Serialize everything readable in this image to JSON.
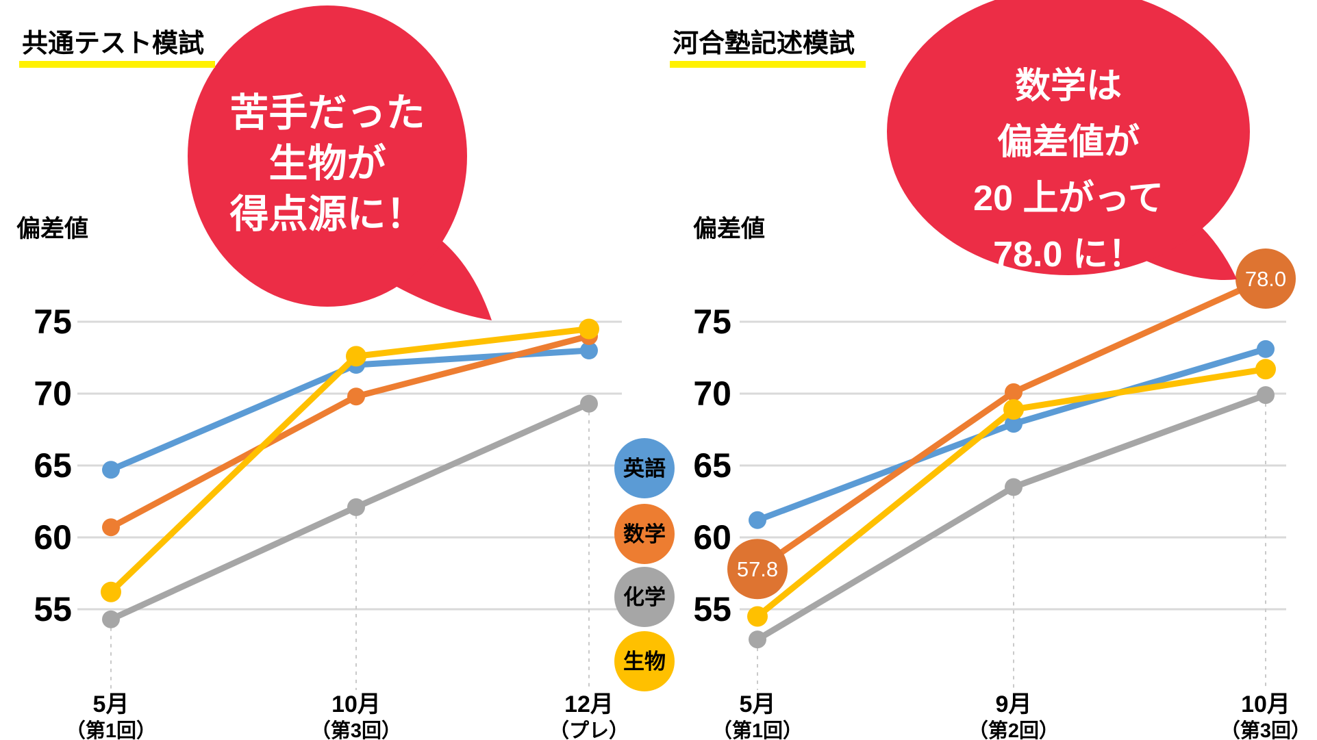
{
  "colors": {
    "english": "#5B9BD5",
    "math": "#ED7D31",
    "chemistry": "#A6A6A6",
    "biology": "#FFC000",
    "annotation_circle": "#DE7431",
    "bubble_red": "#EC2D46",
    "bubble_text": "#FFFFFF",
    "highlight_yellow": "#FFF100",
    "gridline": "#D9D9D9",
    "dash_line": "#C9C9C9",
    "text": "#000000"
  },
  "legend": {
    "items": [
      {
        "label": "英語",
        "series": "english"
      },
      {
        "label": "数学",
        "series": "math"
      },
      {
        "label": "化学",
        "series": "chemistry"
      },
      {
        "label": "生物",
        "series": "biology"
      }
    ]
  },
  "chart_data": [
    {
      "id": "kyotsu-test-moshi",
      "type": "line",
      "title": "共通テスト模試",
      "ylabel": "偏差値",
      "yticks": [
        75,
        70,
        65,
        60,
        55
      ],
      "ylim": [
        52,
        79
      ],
      "grid": true,
      "legend_position": "right-of-chart (shared badges)",
      "categories": [
        {
          "month": "5月",
          "round": "（第1回）"
        },
        {
          "month": "10月",
          "round": "（第3回）"
        },
        {
          "month": "12月",
          "round": "（プレ）"
        }
      ],
      "series": [
        {
          "name": "英語",
          "key": "english",
          "values": [
            64.7,
            72.0,
            73.0
          ]
        },
        {
          "name": "数学",
          "key": "math",
          "values": [
            60.7,
            69.8,
            74.0
          ]
        },
        {
          "name": "化学",
          "key": "chemistry",
          "values": [
            54.3,
            62.1,
            69.3
          ]
        },
        {
          "name": "生物",
          "key": "biology",
          "values": [
            56.2,
            72.6,
            74.5
          ]
        }
      ],
      "callout": {
        "lines": [
          "苦手だった",
          "生物が",
          "得点源に！"
        ]
      }
    },
    {
      "id": "kawaijuku-kijutsu-moshi",
      "type": "line",
      "title": "河合塾記述模試",
      "ylabel": "偏差値",
      "yticks": [
        75,
        70,
        65,
        60,
        55
      ],
      "ylim": [
        52,
        79
      ],
      "grid": true,
      "categories": [
        {
          "month": "5月",
          "round": "（第1回）"
        },
        {
          "month": "9月",
          "round": "（第2回）"
        },
        {
          "month": "10月",
          "round": "（第3回）"
        }
      ],
      "series": [
        {
          "name": "英語",
          "key": "english",
          "values": [
            61.2,
            67.9,
            73.1
          ]
        },
        {
          "name": "数学",
          "key": "math",
          "values": [
            57.8,
            70.1,
            78.0
          ],
          "point_labels": [
            {
              "index": 0,
              "text": "57.8"
            },
            {
              "index": 2,
              "text": "78.0"
            }
          ]
        },
        {
          "name": "化学",
          "key": "chemistry",
          "values": [
            52.9,
            63.5,
            69.9
          ]
        },
        {
          "name": "生物",
          "key": "biology",
          "values": [
            54.5,
            68.9,
            71.7
          ]
        }
      ],
      "callout": {
        "lines": [
          "数学は",
          "偏差値が",
          "20 上がって",
          "78.0 に！"
        ]
      }
    }
  ]
}
